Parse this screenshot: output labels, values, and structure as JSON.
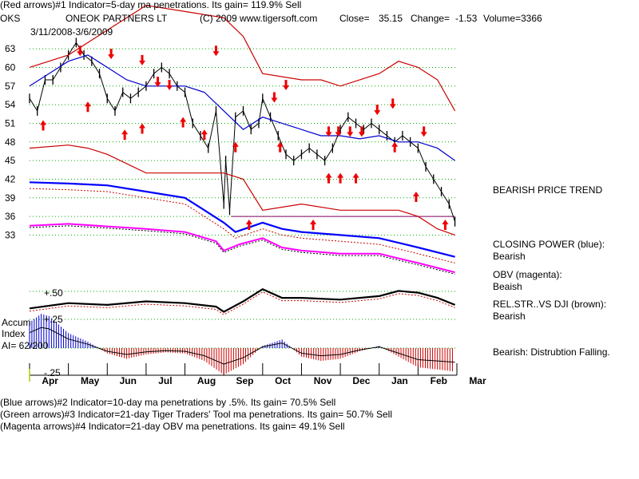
{
  "header": {
    "line1": "(Red arrows)#1 Indicator=5-day ma penetrations. Its gain= 119.9% Sell",
    "ticker": "OKS",
    "company": "ONEOK PARTNERS LT",
    "copyright": "(C) 2009 www.tigersoft.com",
    "close_label": "Close=",
    "close_value": "35.15",
    "change_label": "Change=",
    "change_value": "-1.53",
    "volume_label": "Volume=",
    "volume_value": "3366",
    "date_range": "3/11/2008-3/6/2009"
  },
  "right_panel": {
    "trend": "BEARISH PRICE TREND",
    "cp_title": "CLOSING POWER (blue):",
    "cp_value": "Bearish",
    "obv_title": "OBV (magenta):",
    "obv_value": "Beaish",
    "rel_title": "REL.STR..VS DJI (brown):",
    "rel_value": "Bearish",
    "accum_status": "Bearish: Distrubtion Falling."
  },
  "left_labels": {
    "accum1": "Accum",
    "accum2": "Index",
    "ai": "AI= 62/200",
    "plus50": "+.50",
    "plus25": "+.25",
    "minus25": "-.25"
  },
  "footer": {
    "line2": "(Blue arrows)#2 Indicator=10-day ma penetrations by .5%. Its gain= 70.5% Sell",
    "line3": "(Green arrows)#3 Indicator=21-day Tiger Traders' Tool ma penetrations. Its gain= 50.7% Sell",
    "line4": "(Magenta arrows)#4 Indicator=21-day OBV ma penetrations. Its gain= 49.1% Sell"
  },
  "colors": {
    "price": "#000000",
    "band": "#cc0000",
    "ma": "#0000cc",
    "cp": "#0000ff",
    "obv": "#ff00ff",
    "rel": "#000000",
    "accum_pos": "#0000cc",
    "accum_neg": "#cc0000",
    "arrow": "#ee0000",
    "grid": "#00aa00"
  },
  "chart_data": {
    "type": "line",
    "title": "ONEOK PARTNERS LT",
    "yticks": [
      33,
      36,
      39,
      42,
      45,
      48,
      51,
      54,
      57,
      60,
      63
    ],
    "ylim": [
      31,
      67
    ],
    "months": [
      "Apr",
      "May",
      "Jun",
      "Jul",
      "Aug",
      "Sep",
      "Oct",
      "Nov",
      "Dec",
      "Jan",
      "Feb",
      "Mar"
    ],
    "support_level": 36,
    "series": [
      {
        "kind": "price",
        "x": [
          0,
          0.2,
          0.4,
          0.6,
          0.8,
          1,
          1.2,
          1.4,
          1.6,
          1.8,
          2,
          2.2,
          2.4,
          2.6,
          2.8,
          3,
          3.2,
          3.4,
          3.6,
          3.8,
          4,
          4.2,
          4.4,
          4.6,
          4.8,
          5,
          5.05,
          5.15,
          5.3,
          5.5,
          5.7,
          5.9,
          6,
          6.2,
          6.4,
          6.6,
          6.8,
          7,
          7.2,
          7.4,
          7.6,
          7.8,
          8,
          8.2,
          8.4,
          8.6,
          8.8,
          9,
          9.2,
          9.4,
          9.6,
          9.8,
          10,
          10.2,
          10.4,
          10.6,
          10.8,
          10.95
        ],
        "values": [
          55,
          53,
          58,
          58,
          60,
          62,
          64,
          62,
          61,
          59,
          55,
          53,
          56,
          55,
          56,
          57,
          59,
          60,
          59,
          57,
          56,
          51,
          49,
          47,
          53,
          38,
          45,
          37,
          52,
          53,
          50,
          51,
          55,
          52,
          49,
          46,
          45,
          46,
          47,
          46,
          45,
          47,
          50,
          52,
          51,
          50,
          51,
          50,
          49,
          48,
          49,
          48,
          47,
          44,
          42,
          40,
          38,
          35.15
        ]
      },
      {
        "kind": "upper_band",
        "x": [
          0,
          1,
          2,
          3,
          4,
          5,
          5.5,
          6,
          7,
          7.5,
          8,
          9,
          9.5,
          10,
          10.5,
          10.95
        ],
        "values": [
          60,
          62,
          66,
          70,
          69,
          68,
          65,
          59,
          58,
          58,
          57,
          59,
          61,
          60,
          58,
          53
        ]
      },
      {
        "kind": "lower_band",
        "x": [
          0,
          1,
          1.5,
          2,
          3,
          4,
          5,
          5.5,
          6,
          7,
          8,
          9,
          9.5,
          10,
          10.5,
          10.95
        ],
        "values": [
          47,
          47.5,
          47,
          46,
          43,
          43,
          43,
          42,
          37,
          38,
          37,
          37,
          37,
          36,
          34,
          33
        ]
      },
      {
        "kind": "ma21",
        "x": [
          0,
          0.5,
          1,
          1.5,
          2,
          2.5,
          3,
          3.5,
          4,
          4.5,
          5,
          5.5,
          6,
          6.5,
          7,
          7.5,
          8,
          8.5,
          9,
          9.5,
          10,
          10.5,
          10.95
        ],
        "values": [
          57,
          59,
          61,
          62,
          60,
          58,
          57,
          57,
          57,
          56,
          53,
          50,
          52,
          51,
          50,
          49,
          49,
          48.5,
          49,
          48,
          48,
          47,
          45
        ]
      }
    ],
    "closing_power": [
      [
        0,
        41.5
      ],
      [
        1,
        41.3
      ],
      [
        2,
        41
      ],
      [
        3,
        40
      ],
      [
        4,
        39
      ],
      [
        4.5,
        37
      ],
      [
        5,
        35
      ],
      [
        5.3,
        33.5
      ],
      [
        6,
        35
      ],
      [
        6.5,
        34
      ],
      [
        7,
        33.5
      ],
      [
        8,
        33
      ],
      [
        9,
        32.5
      ],
      [
        10,
        31
      ],
      [
        10.95,
        29.5
      ]
    ],
    "obv": [
      [
        0,
        41.5
      ],
      [
        1,
        41.8
      ],
      [
        2,
        41.4
      ],
      [
        2.5,
        41.2
      ],
      [
        3,
        41
      ],
      [
        4,
        40.5
      ],
      [
        4.8,
        39
      ],
      [
        5,
        37.5
      ],
      [
        5.4,
        38.5
      ],
      [
        6,
        39.5
      ],
      [
        6.5,
        38
      ],
      [
        7,
        37.5
      ],
      [
        8,
        37
      ],
      [
        9,
        37
      ],
      [
        10,
        35.5
      ],
      [
        10.95,
        34
      ]
    ],
    "rel_strength": [
      [
        0,
        1.0
      ],
      [
        1,
        1.15
      ],
      [
        2,
        1.1
      ],
      [
        3,
        1.2
      ],
      [
        4,
        1.15
      ],
      [
        4.8,
        1.05
      ],
      [
        5,
        0.9
      ],
      [
        5.5,
        1.2
      ],
      [
        6,
        1.55
      ],
      [
        6.5,
        1.3
      ],
      [
        7,
        1.3
      ],
      [
        8,
        1.25
      ],
      [
        9,
        1.35
      ],
      [
        9.5,
        1.5
      ],
      [
        10,
        1.45
      ],
      [
        10.5,
        1.3
      ],
      [
        10.95,
        1.1
      ]
    ],
    "accum_index": [
      [
        0,
        0.24
      ],
      [
        0.3,
        0.32
      ],
      [
        0.5,
        0.3
      ],
      [
        1,
        0.14
      ],
      [
        1.5,
        0.06
      ],
      [
        2,
        -0.05
      ],
      [
        2.5,
        -0.1
      ],
      [
        3,
        -0.06
      ],
      [
        3.5,
        -0.04
      ],
      [
        4,
        -0.05
      ],
      [
        4.5,
        -0.12
      ],
      [
        5,
        -0.25
      ],
      [
        5.5,
        -0.15
      ],
      [
        6,
        0.02
      ],
      [
        6.5,
        0.08
      ],
      [
        7,
        -0.08
      ],
      [
        7.5,
        -0.12
      ],
      [
        8,
        -0.1
      ],
      [
        8.5,
        -0.03
      ],
      [
        9,
        0.02
      ],
      [
        9.5,
        -0.08
      ],
      [
        10,
        -0.18
      ],
      [
        10.5,
        -0.2
      ],
      [
        10.95,
        -0.22
      ]
    ]
  }
}
